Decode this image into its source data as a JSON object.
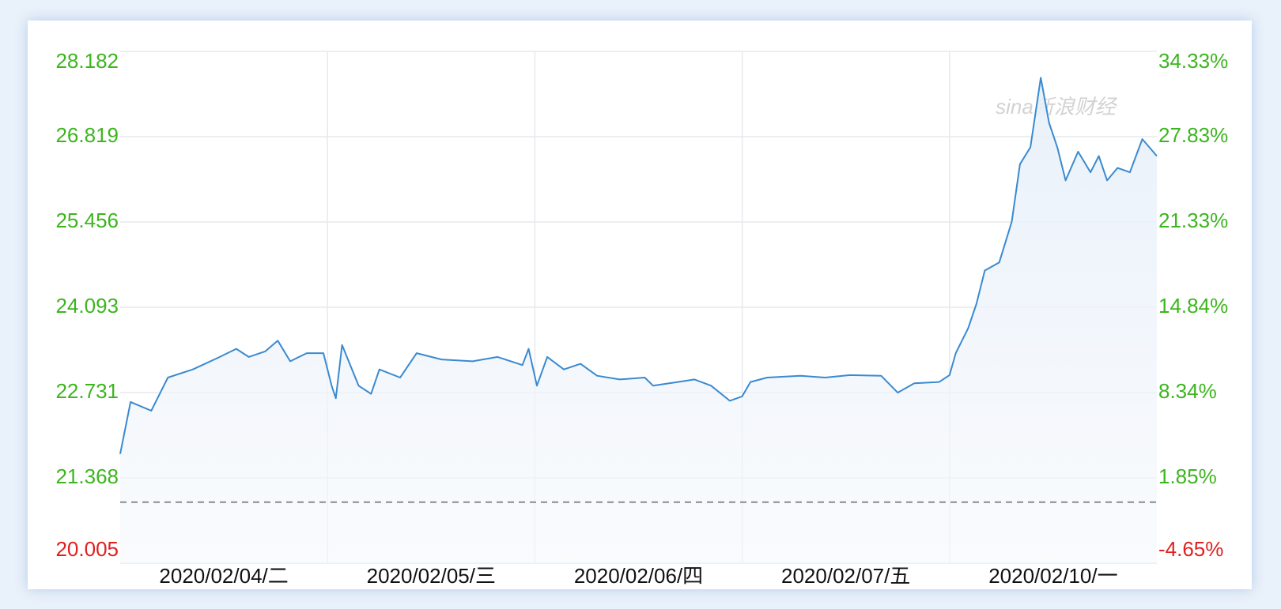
{
  "chart_data": {
    "type": "line",
    "watermark": "sina新浪财经",
    "xlim": [
      0,
      5
    ],
    "xticks": [
      {
        "value": 0.5,
        "label": "2020/02/04/二"
      },
      {
        "value": 1.5,
        "label": "2020/02/05/三"
      },
      {
        "value": 2.5,
        "label": "2020/02/06/四"
      },
      {
        "value": 3.5,
        "label": "2020/02/07/五"
      },
      {
        "value": 4.5,
        "label": "2020/02/10/一"
      }
    ],
    "xgrid": [
      1,
      2,
      3,
      4
    ],
    "ylim": [
      20.005,
      28.182
    ],
    "yticks": [
      28.182,
      26.819,
      25.456,
      24.093,
      22.731,
      21.368,
      20.005
    ],
    "y2lim": [
      -4.65,
      34.33
    ],
    "y2ticks": [
      {
        "value": 34.33,
        "label": "34.33%"
      },
      {
        "value": 27.83,
        "label": "27.83%"
      },
      {
        "value": 21.33,
        "label": "21.33%"
      },
      {
        "value": 14.84,
        "label": "14.84%"
      },
      {
        "value": 8.34,
        "label": "8.34%"
      },
      {
        "value": 1.85,
        "label": "1.85%"
      },
      {
        "value": -4.65,
        "label": "-4.65%"
      }
    ],
    "baseline": 20.98,
    "grid": true,
    "up_color": "#3db51e",
    "down_color": "#e02020",
    "x": [
      0,
      0.05,
      0.15,
      0.23,
      0.35,
      0.48,
      0.56,
      0.62,
      0.7,
      0.76,
      0.82,
      0.9,
      0.98,
      1.02,
      1.04,
      1.07,
      1.15,
      1.21,
      1.25,
      1.35,
      1.43,
      1.55,
      1.7,
      1.82,
      1.94,
      1.97,
      2.01,
      2.06,
      2.14,
      2.22,
      2.3,
      2.41,
      2.53,
      2.57,
      2.69,
      2.77,
      2.85,
      2.94,
      3.0,
      3.04,
      3.12,
      3.28,
      3.4,
      3.52,
      3.67,
      3.75,
      3.83,
      3.95,
      4.0,
      4.03,
      4.09,
      4.13,
      4.17,
      4.24,
      4.3,
      4.34,
      4.39,
      4.44,
      4.48,
      4.52,
      4.56,
      4.62,
      4.68,
      4.72,
      4.76,
      4.81,
      4.87,
      4.93,
      5.0
    ],
    "series": [
      {
        "color": "#3a8ad0",
        "values": [
          21.75,
          22.58,
          22.44,
          22.97,
          23.1,
          23.3,
          23.43,
          23.3,
          23.39,
          23.56,
          23.23,
          23.36,
          23.36,
          22.84,
          22.64,
          23.49,
          22.84,
          22.71,
          23.1,
          22.97,
          23.36,
          23.26,
          23.23,
          23.3,
          23.17,
          23.43,
          22.84,
          23.3,
          23.1,
          23.19,
          23.0,
          22.94,
          22.97,
          22.84,
          22.9,
          22.94,
          22.84,
          22.6,
          22.67,
          22.9,
          22.97,
          23.0,
          22.97,
          23.01,
          23.0,
          22.73,
          22.88,
          22.9,
          23.01,
          23.36,
          23.76,
          24.15,
          24.68,
          24.81,
          25.46,
          26.38,
          26.65,
          27.76,
          27.04,
          26.65,
          26.12,
          26.58,
          26.25,
          26.51,
          26.12,
          26.32,
          26.25,
          26.78,
          26.51
        ]
      }
    ]
  }
}
